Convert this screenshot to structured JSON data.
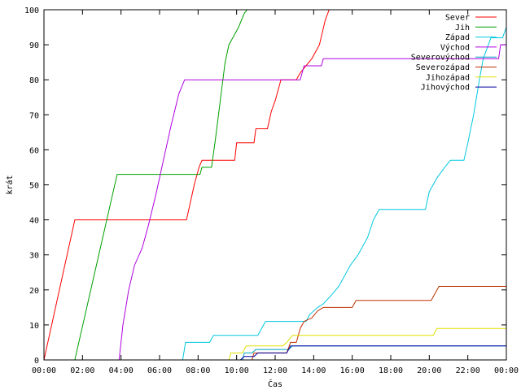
{
  "chart_data": {
    "type": "line",
    "xlabel": "Čas",
    "ylabel": "krát",
    "xlim": [
      0,
      24
    ],
    "ylim": [
      0,
      100
    ],
    "x_ticks": [
      {
        "value": 0,
        "label": "00:00"
      },
      {
        "value": 2,
        "label": "02:00"
      },
      {
        "value": 4,
        "label": "04:00"
      },
      {
        "value": 6,
        "label": "06:00"
      },
      {
        "value": 8,
        "label": "08:00"
      },
      {
        "value": 10,
        "label": "10:00"
      },
      {
        "value": 12,
        "label": "12:00"
      },
      {
        "value": 14,
        "label": "14:00"
      },
      {
        "value": 16,
        "label": "16:00"
      },
      {
        "value": 18,
        "label": "18:00"
      },
      {
        "value": 20,
        "label": "20:00"
      },
      {
        "value": 22,
        "label": "22:00"
      },
      {
        "value": 24,
        "label": "00:00"
      }
    ],
    "y_ticks": [
      0,
      10,
      20,
      30,
      40,
      50,
      60,
      70,
      80,
      90,
      100
    ],
    "grid": false,
    "legend_position": "top-right",
    "series": [
      {
        "name": "Sever",
        "color": "#ff0000",
        "points": [
          [
            0,
            0
          ],
          [
            1.6,
            40
          ],
          [
            7.4,
            40
          ],
          [
            7.8,
            50
          ],
          [
            8.05,
            55
          ],
          [
            8.2,
            57
          ],
          [
            9.9,
            57
          ],
          [
            10.0,
            62
          ],
          [
            10.9,
            62
          ],
          [
            11.0,
            66
          ],
          [
            11.6,
            66
          ],
          [
            11.8,
            71
          ],
          [
            12.0,
            74
          ],
          [
            12.3,
            80
          ],
          [
            13.1,
            80
          ],
          [
            13.3,
            82
          ],
          [
            13.6,
            84
          ],
          [
            13.9,
            86
          ],
          [
            14.3,
            90
          ],
          [
            14.6,
            97
          ],
          [
            14.8,
            100
          ]
        ]
      },
      {
        "name": "Jih",
        "color": "#00a000",
        "points": [
          [
            1.6,
            0
          ],
          [
            3.8,
            53
          ],
          [
            8.1,
            53
          ],
          [
            8.2,
            55
          ],
          [
            8.7,
            55
          ],
          [
            8.9,
            63
          ],
          [
            9.4,
            85
          ],
          [
            9.6,
            90
          ],
          [
            9.9,
            93
          ],
          [
            10.1,
            95
          ],
          [
            10.4,
            99
          ],
          [
            10.55,
            100
          ]
        ]
      },
      {
        "name": "Západ",
        "color": "#00c8e0",
        "points": [
          [
            7.2,
            0
          ],
          [
            7.35,
            5
          ],
          [
            8.6,
            5
          ],
          [
            8.8,
            7
          ],
          [
            11.1,
            7
          ],
          [
            11.3,
            9
          ],
          [
            11.5,
            11
          ],
          [
            13.6,
            11
          ],
          [
            13.8,
            13
          ],
          [
            14.2,
            15
          ],
          [
            14.5,
            16
          ],
          [
            15.0,
            19
          ],
          [
            15.3,
            21
          ],
          [
            15.6,
            24
          ],
          [
            15.9,
            27
          ],
          [
            16.3,
            30
          ],
          [
            16.8,
            35
          ],
          [
            17.1,
            40
          ],
          [
            17.4,
            43
          ],
          [
            19.8,
            43
          ],
          [
            20.0,
            48
          ],
          [
            20.4,
            52
          ],
          [
            20.8,
            55
          ],
          [
            21.1,
            57
          ],
          [
            21.8,
            57
          ],
          [
            22.0,
            62
          ],
          [
            22.3,
            70
          ],
          [
            22.6,
            80
          ],
          [
            22.8,
            86
          ],
          [
            23.2,
            92
          ],
          [
            23.8,
            92
          ],
          [
            24.0,
            95
          ]
        ]
      },
      {
        "name": "Východ",
        "color": "#b000e0",
        "points": [
          [
            3.9,
            0
          ],
          [
            4.1,
            10
          ],
          [
            4.4,
            20
          ],
          [
            4.7,
            27
          ],
          [
            5.1,
            32
          ],
          [
            5.4,
            38
          ],
          [
            5.8,
            47
          ],
          [
            6.2,
            57
          ],
          [
            6.6,
            67
          ],
          [
            7.0,
            76
          ],
          [
            7.3,
            80
          ],
          [
            13.3,
            80
          ],
          [
            13.5,
            84
          ],
          [
            14.4,
            84
          ],
          [
            14.5,
            86
          ],
          [
            23.6,
            86
          ],
          [
            23.7,
            90
          ],
          [
            24,
            90
          ]
        ]
      },
      {
        "name": "Severovýchod",
        "color": "#00a0c0",
        "points": [
          [
            10.3,
            0
          ],
          [
            10.4,
            2
          ],
          [
            10.8,
            2
          ],
          [
            11.0,
            3
          ],
          [
            12.7,
            3
          ],
          [
            12.9,
            4
          ],
          [
            24,
            4
          ]
        ]
      },
      {
        "name": "Severozápad",
        "color": "#c03000",
        "points": [
          [
            10.8,
            0
          ],
          [
            10.9,
            2
          ],
          [
            12.6,
            2
          ],
          [
            12.8,
            5
          ],
          [
            13.1,
            5
          ],
          [
            13.3,
            9
          ],
          [
            13.5,
            11
          ],
          [
            13.9,
            12
          ],
          [
            14.2,
            14
          ],
          [
            14.5,
            15
          ],
          [
            16.0,
            15
          ],
          [
            16.2,
            17
          ],
          [
            20.1,
            17
          ],
          [
            20.3,
            19
          ],
          [
            20.5,
            21
          ],
          [
            24,
            21
          ]
        ]
      },
      {
        "name": "Jihozápad",
        "color": "#e0e000",
        "points": [
          [
            9.6,
            0
          ],
          [
            9.7,
            2
          ],
          [
            10.3,
            2
          ],
          [
            10.5,
            4
          ],
          [
            12.4,
            4
          ],
          [
            12.6,
            5
          ],
          [
            12.9,
            7
          ],
          [
            20.2,
            7
          ],
          [
            20.4,
            9
          ],
          [
            24,
            9
          ]
        ]
      },
      {
        "name": "Jihovýchod",
        "color": "#0000a0",
        "points": [
          [
            10.2,
            0
          ],
          [
            10.4,
            1
          ],
          [
            10.9,
            1
          ],
          [
            11.1,
            2
          ],
          [
            12.6,
            2
          ],
          [
            12.8,
            4
          ],
          [
            24,
            4
          ]
        ]
      }
    ]
  }
}
